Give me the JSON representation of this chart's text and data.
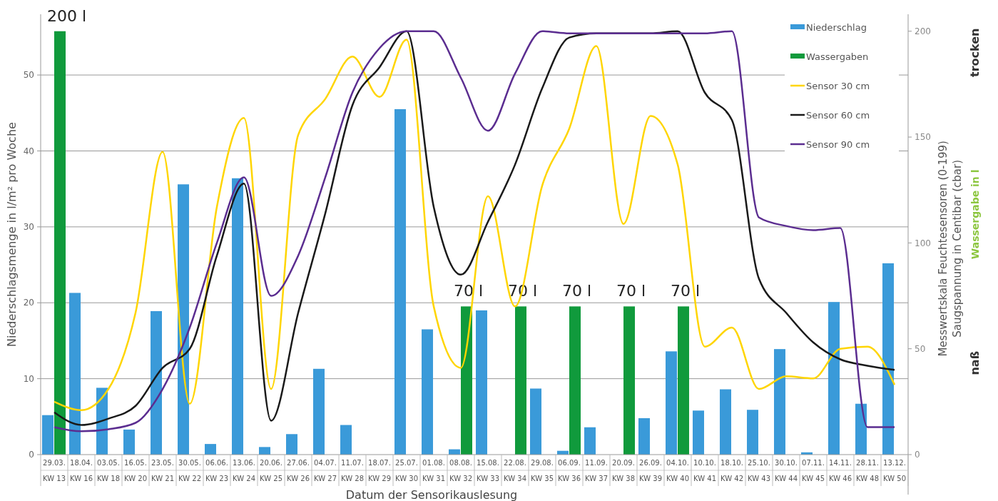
{
  "chart_data": {
    "type": "bar",
    "xlabel": "Datum der Sensorikauslesung",
    "ylabel": "Niederschlagsmenge in l/m² pro Woche",
    "y2label": "Messwertskala Feuchtesensoren (0-199)\nSaugspannung in Centibar (cbar)",
    "categories": [
      "29.03.\nKW 13",
      "18.04.\nKW 16",
      "03.05.\nKW 18",
      "16.05.\nKW 20",
      "23.05.\nKW 21",
      "30.05.\nKW 22",
      "06.06.\nKW 23",
      "13.06.\nKW 24",
      "20.06.\nKW 25",
      "27.06.\nKW 26",
      "04.07.\nKW 27",
      "11.07.\nKW 28",
      "18.07.\nKW 29",
      "25.07.\nKW 30",
      "01.08.\nKW 31",
      "08.08.\nKW 32",
      "15.08.\nKW 33",
      "22.08.\nKW 34",
      "29.08.\nKW 35",
      "06.09.\nKW 36",
      "11.09.\nKW 37",
      "20.09.\nKW 38",
      "26.09.\nKW 39",
      "04.10.\nKW 40",
      "10.10.\nKW 41",
      "18.10.\nKW 42",
      "25.10.\nKW 43",
      "30.10.\nKW 44",
      "07.11.\nKW 45",
      "14.11.\nKW 46",
      "28.11.\nKW 48",
      "13.12.\nKW 50"
    ],
    "series": [
      {
        "name": "Niederschlag",
        "color": "#3a9ad9",
        "values": [
          5.2,
          21.3,
          8.8,
          3.3,
          18.9,
          35.6,
          1.4,
          36.4,
          1.0,
          2.7,
          11.3,
          3.9,
          null,
          45.5,
          16.5,
          0.7,
          19.0,
          null,
          8.7,
          0.5,
          3.6,
          null,
          4.8,
          13.6,
          5.8,
          8.6,
          5.9,
          13.9,
          0.3,
          20.1,
          6.7,
          25.2
        ]
      },
      {
        "name": "Wassergaben",
        "axis": "y2",
        "color": "#109a3c",
        "values": [
          200,
          null,
          null,
          null,
          null,
          null,
          null,
          null,
          null,
          null,
          null,
          null,
          null,
          null,
          null,
          70,
          null,
          70,
          null,
          70,
          null,
          70,
          null,
          70,
          null,
          null,
          null,
          null,
          null,
          null,
          null,
          null
        ],
        "value_labels": [
          "200 l",
          null,
          null,
          null,
          null,
          null,
          null,
          null,
          null,
          null,
          null,
          null,
          null,
          null,
          null,
          "70 l",
          null,
          "70 l",
          null,
          "70 l",
          null,
          "70 l",
          null,
          "70 l",
          null,
          null,
          null,
          null,
          null,
          null,
          null,
          null
        ]
      },
      {
        "name": "Sensor 30 cm",
        "type": "line",
        "axis": "y2",
        "color": "#ffd500",
        "values": [
          25,
          21,
          31,
          67,
          143,
          24,
          117,
          159,
          31,
          151,
          168,
          188,
          169,
          196,
          70,
          41,
          122,
          70,
          127,
          154,
          193,
          109,
          160,
          137,
          51,
          60,
          31,
          37,
          36,
          50,
          51,
          33
        ]
      },
      {
        "name": "Sensor 60 cm",
        "type": "line",
        "axis": "y2",
        "color": "#1a1a1a",
        "values": [
          20,
          14,
          17,
          23,
          41,
          50,
          94,
          128,
          16,
          67,
          114,
          165,
          183,
          200,
          117,
          85,
          110,
          137,
          173,
          197,
          199,
          199,
          199,
          200,
          171,
          158,
          83,
          67,
          53,
          45,
          42,
          40
        ]
      },
      {
        "name": "Sensor 90 cm",
        "type": "line",
        "axis": "y2",
        "color": "#5b2d90",
        "values": [
          13,
          11,
          12,
          15,
          31,
          60,
          100,
          131,
          75,
          94,
          131,
          171,
          192,
          200,
          200,
          178,
          153,
          180,
          200,
          199,
          199,
          199,
          199,
          199,
          199,
          200,
          112,
          108,
          106,
          107,
          13,
          13
        ]
      }
    ],
    "ylim": [
      0,
      58
    ],
    "yticks": [
      0,
      10,
      20,
      30,
      40,
      50
    ],
    "y2lim": [
      0,
      208
    ],
    "y2ticks": [
      0,
      50,
      100,
      150,
      200
    ],
    "grid": "y",
    "legend": "top right",
    "annotations": [
      "trocken",
      "naß",
      "Wassergabe in l"
    ]
  }
}
